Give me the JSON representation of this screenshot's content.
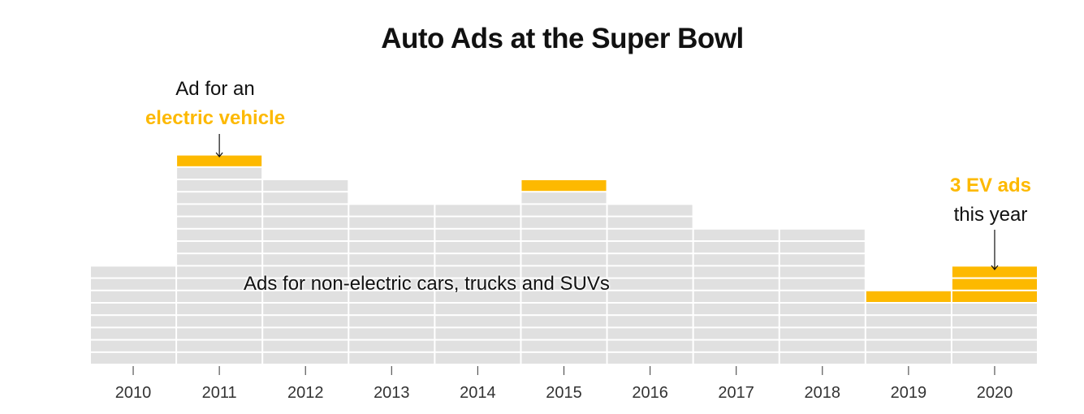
{
  "chart_data": {
    "type": "bar",
    "title": "Auto Ads at the Super Bowl",
    "categories": [
      "2010",
      "2011",
      "2012",
      "2013",
      "2014",
      "2015",
      "2016",
      "2017",
      "2018",
      "2019",
      "2020"
    ],
    "series": [
      {
        "name": "Ads for non-electric cars, trucks and SUVs",
        "values": [
          8,
          16,
          15,
          13,
          13,
          14,
          13,
          11,
          11,
          5,
          5
        ],
        "color": "#e0e0e0"
      },
      {
        "name": "electric vehicle",
        "values": [
          0,
          1,
          0,
          0,
          0,
          1,
          0,
          0,
          0,
          1,
          3
        ],
        "color": "#fdb900"
      }
    ],
    "annotations": {
      "ev_line1": "Ad for an",
      "ev_line2": "electric vehicle",
      "ev2020_line1": "3 EV ads",
      "ev2020_line2": "this year",
      "non_ev_label": "Ads for non-electric cars, trucks and SUVs"
    },
    "xlabel": "",
    "ylabel": "",
    "grid": false
  }
}
